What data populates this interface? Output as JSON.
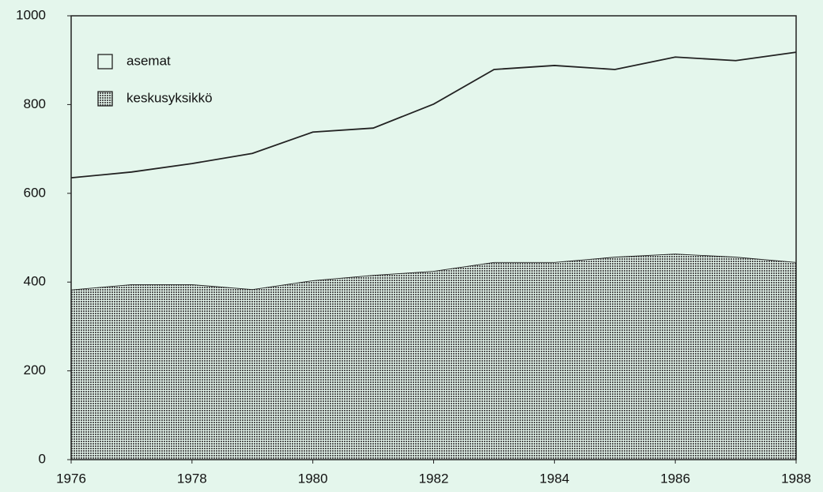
{
  "chart_data": {
    "type": "stacked_area",
    "x": [
      1976,
      1977,
      1978,
      1979,
      1980,
      1981,
      1982,
      1983,
      1984,
      1985,
      1986,
      1987,
      1988
    ],
    "series": [
      {
        "name": "keskusyksikkö",
        "color": "#555555",
        "values": [
          383,
          395,
          395,
          384,
          404,
          416,
          425,
          445,
          445,
          457,
          464,
          457,
          445
        ]
      },
      {
        "name": "asemat",
        "color": "#e4f6ec",
        "values": [
          252,
          253,
          272,
          306,
          334,
          331,
          376,
          434,
          443,
          422,
          443,
          442,
          473
        ]
      }
    ],
    "xlim": [
      1976,
      1988
    ],
    "xticks": [
      1976,
      1978,
      1980,
      1982,
      1984,
      1986,
      1988
    ],
    "ylim": [
      0,
      1000
    ],
    "yticks": [
      0,
      200,
      400,
      600,
      800,
      1000
    ],
    "legend": "upper left"
  }
}
